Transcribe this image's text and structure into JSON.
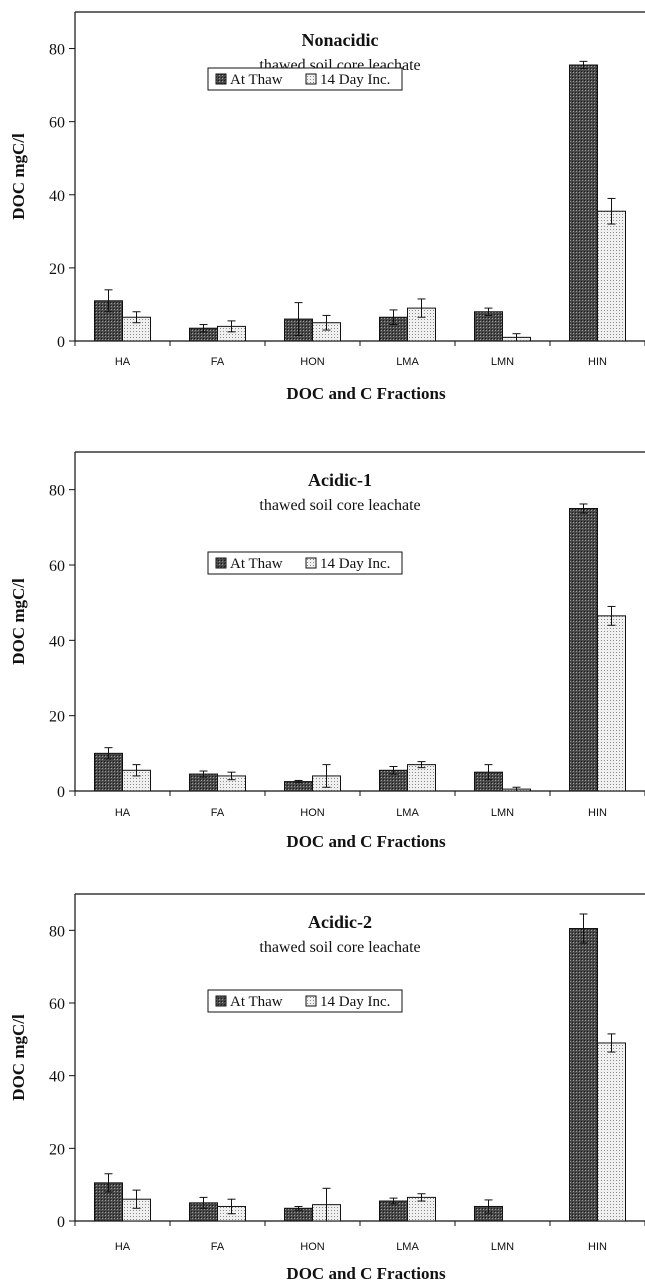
{
  "chart_data": [
    {
      "type": "bar",
      "title": "Nonacidic",
      "subtitle": "thawed soil core leachate",
      "xlabel": "DOC and C Fractions",
      "ylabel": "DOC mgC/l",
      "ylim": [
        0,
        90
      ],
      "yticks": [
        0,
        20,
        40,
        60,
        80
      ],
      "categories": [
        "HA",
        "FA",
        "HON",
        "LMA",
        "LMN",
        "HIN"
      ],
      "series": [
        {
          "name": "At Thaw",
          "values": [
            11,
            3.5,
            6,
            6.5,
            8,
            75.5
          ],
          "errors": [
            3,
            1,
            4.5,
            2,
            1,
            1
          ]
        },
        {
          "name": "14 Day Inc.",
          "values": [
            6.5,
            4,
            5,
            9,
            1,
            35.5
          ],
          "errors": [
            1.5,
            1.5,
            2,
            2.5,
            1,
            3.5
          ]
        }
      ],
      "legend_position": "top-center",
      "grid": false
    },
    {
      "type": "bar",
      "title": "Acidic-1",
      "subtitle": "thawed soil core leachate",
      "xlabel": "DOC and C Fractions",
      "ylabel": "DOC mgC/l",
      "ylim": [
        0,
        90
      ],
      "yticks": [
        0,
        20,
        40,
        60,
        80
      ],
      "categories": [
        "HA",
        "FA",
        "HON",
        "LMA",
        "LMN",
        "HIN"
      ],
      "series": [
        {
          "name": "At Thaw",
          "values": [
            10,
            4.5,
            2.5,
            5.5,
            5,
            75
          ],
          "errors": [
            1.5,
            0.8,
            0.3,
            1,
            2,
            1.2
          ]
        },
        {
          "name": "14 Day Inc.",
          "values": [
            5.5,
            4,
            4,
            7,
            0.5,
            46.5
          ],
          "errors": [
            1.5,
            1,
            3,
            0.8,
            0.5,
            2.5
          ]
        }
      ],
      "legend_position": "top-center",
      "grid": false
    },
    {
      "type": "bar",
      "title": "Acidic-2",
      "subtitle": "thawed soil core leachate",
      "xlabel": "DOC and C Fractions",
      "ylabel": "DOC mgC/l",
      "ylim": [
        0,
        90
      ],
      "yticks": [
        0,
        20,
        40,
        60,
        80
      ],
      "categories": [
        "HA",
        "FA",
        "HON",
        "LMA",
        "LMN",
        "HIN"
      ],
      "series": [
        {
          "name": "At Thaw",
          "values": [
            10.5,
            5,
            3.5,
            5.5,
            4,
            80.5
          ],
          "errors": [
            2.5,
            1.5,
            0.5,
            0.8,
            1.8,
            4
          ]
        },
        {
          "name": "14 Day Inc.",
          "values": [
            6,
            4,
            4.5,
            6.5,
            0,
            49
          ],
          "errors": [
            2.5,
            2,
            4.5,
            1,
            0,
            2.5
          ]
        }
      ],
      "legend_position": "top-center",
      "grid": false
    }
  ]
}
